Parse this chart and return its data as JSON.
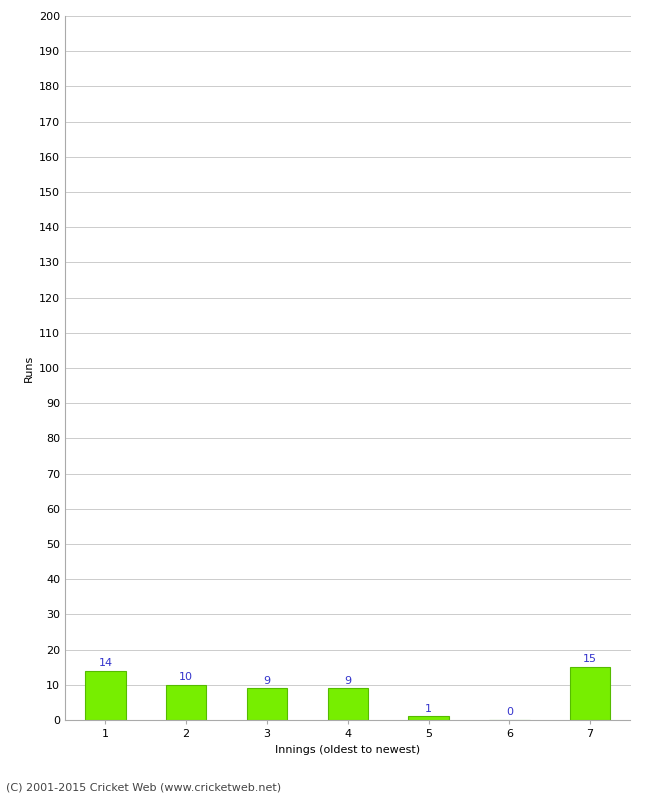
{
  "categories": [
    "1",
    "2",
    "3",
    "4",
    "5",
    "6",
    "7"
  ],
  "values": [
    14,
    10,
    9,
    9,
    1,
    0,
    15
  ],
  "bar_color": "#77ee00",
  "bar_edge_color": "#55bb00",
  "label_color": "#3333cc",
  "xlabel": "Innings (oldest to newest)",
  "ylabel": "Runs",
  "ylim": [
    0,
    200
  ],
  "yticks": [
    0,
    10,
    20,
    30,
    40,
    50,
    60,
    70,
    80,
    90,
    100,
    110,
    120,
    130,
    140,
    150,
    160,
    170,
    180,
    190,
    200
  ],
  "background_color": "#ffffff",
  "grid_color": "#cccccc",
  "footer": "(C) 2001-2015 Cricket Web (www.cricketweb.net)",
  "label_fontsize": 8,
  "axis_label_fontsize": 8,
  "tick_fontsize": 8,
  "footer_fontsize": 8
}
